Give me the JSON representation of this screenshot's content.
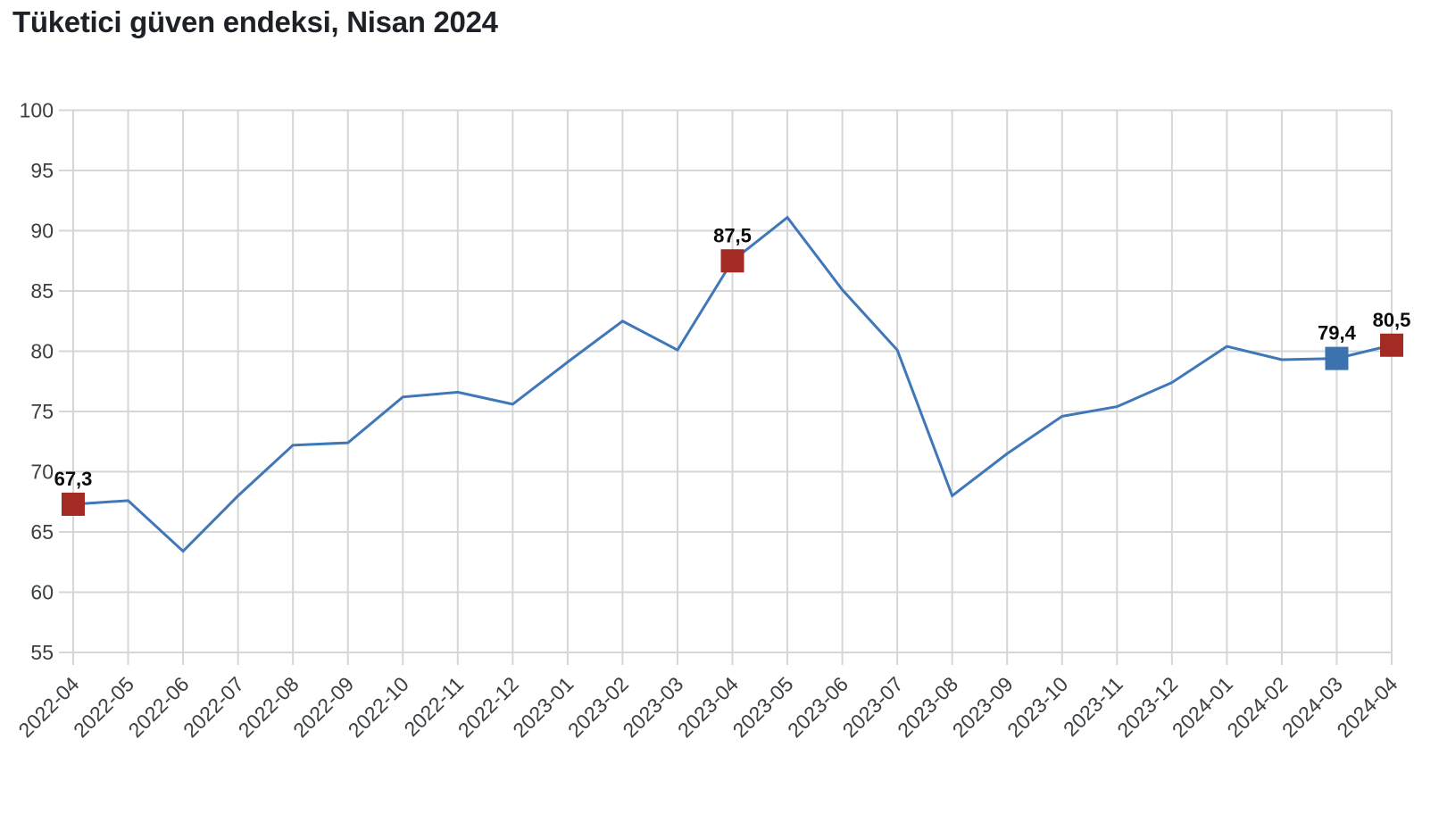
{
  "title": "Tüketici güven endeksi, Nisan 2024",
  "colors": {
    "background": "#ffffff",
    "line": "#3f77b8",
    "marker_red": "#a22b23",
    "marker_blue": "#3c73af",
    "grid": "#d6d6d6",
    "axis_text": "#3c4043",
    "title_text": "#1d2228",
    "annotation_text": "#0b0b0b"
  },
  "chart_data": {
    "type": "line",
    "title": "Tüketici güven endeksi, Nisan 2024",
    "xlabel": "",
    "ylabel": "",
    "x": [
      "2022-04",
      "2022-05",
      "2022-06",
      "2022-07",
      "2022-08",
      "2022-09",
      "2022-10",
      "2022-11",
      "2022-12",
      "2023-01",
      "2023-02",
      "2023-03",
      "2023-04",
      "2023-05",
      "2023-06",
      "2023-07",
      "2023-08",
      "2023-09",
      "2023-10",
      "2023-11",
      "2023-12",
      "2024-01",
      "2024-02",
      "2024-03",
      "2024-04"
    ],
    "values": [
      67.3,
      67.6,
      63.4,
      68.0,
      72.2,
      72.4,
      76.2,
      76.6,
      75.6,
      79.1,
      82.5,
      80.1,
      87.5,
      91.1,
      85.1,
      80.1,
      68.0,
      71.5,
      74.6,
      75.4,
      77.4,
      80.4,
      79.3,
      79.4,
      80.5
    ],
    "ylim": [
      55,
      100
    ],
    "yticks": [
      55,
      60,
      65,
      70,
      75,
      80,
      85,
      90,
      95,
      100
    ],
    "grid": true,
    "legend_position": "none",
    "annotated_points": [
      {
        "x": "2022-04",
        "value": 67.3,
        "label": "67,3",
        "marker": "square",
        "color": "#a22b23"
      },
      {
        "x": "2023-04",
        "value": 87.5,
        "label": "87,5",
        "marker": "square",
        "color": "#a22b23"
      },
      {
        "x": "2024-03",
        "value": 79.4,
        "label": "79,4",
        "marker": "square",
        "color": "#3c73af"
      },
      {
        "x": "2024-04",
        "value": 80.5,
        "label": "80,5",
        "marker": "square",
        "color": "#a22b23"
      }
    ]
  }
}
